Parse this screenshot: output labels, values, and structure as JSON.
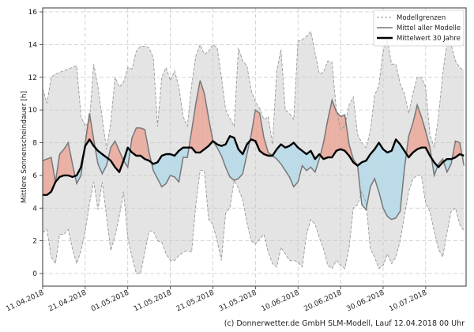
{
  "chart_data": {
    "type": "area",
    "ylabel": "Mittlere Sonnenscheindauer [h]",
    "xlabel": "",
    "ylim": [
      -0.6,
      16.2
    ],
    "yticks": [
      0,
      2,
      4,
      6,
      8,
      10,
      12,
      14,
      16
    ],
    "x_start_date": "11.04.2018",
    "x_days": 99.5,
    "xticks": [
      {
        "day": 0,
        "label": "11.04.2018"
      },
      {
        "day": 10,
        "label": "21.04.2018"
      },
      {
        "day": 20,
        "label": "01.05.2018"
      },
      {
        "day": 30,
        "label": "11.05.2018"
      },
      {
        "day": 40,
        "label": "21.05.2018"
      },
      {
        "day": 50,
        "label": "31.05.2018"
      },
      {
        "day": 60,
        "label": "10.06.2018"
      },
      {
        "day": 70,
        "label": "20.06.2018"
      },
      {
        "day": 80,
        "label": "30.06.2018"
      },
      {
        "day": 90,
        "label": "10.07.2018"
      }
    ],
    "grid": true,
    "legend_position": "top-right",
    "legend": [
      "Modellgrenzen",
      "Mittel aller Modelle",
      "Mittelwert 30 Jahre"
    ],
    "colors": {
      "band": "#e4e4e4",
      "band_edge": "#999999",
      "model_mean": "#777777",
      "climate_mean": "#000000",
      "above": "#eab0a4",
      "below": "#bcdbe8"
    },
    "series": [
      {
        "name": "Modellgrenzen max",
        "values": [
          11.3,
          10.4,
          12.0,
          12.2,
          12.3,
          12.4,
          12.5,
          12.6,
          12.7,
          9.6,
          9.0,
          9.3,
          12.8,
          11.4,
          9.5,
          7.6,
          9.2,
          12.0,
          11.4,
          11.7,
          12.6,
          12.5,
          13.6,
          13.9,
          13.9,
          13.8,
          13.2,
          9.0,
          12.0,
          12.6,
          11.8,
          12.4,
          11.4,
          9.6,
          9.0,
          11.5,
          13.3,
          14.0,
          13.4,
          13.6,
          14.0,
          13.8,
          12.0,
          10.0,
          9.5,
          9.0,
          13.8,
          13.0,
          12.7,
          11.2,
          10.5,
          10.1,
          9.4,
          9.6,
          7.9,
          12.4,
          13.7,
          10.0,
          9.8,
          9.4,
          14.2,
          14.3,
          14.5,
          14.8,
          13.5,
          12.2,
          12.3,
          13.0,
          12.9,
          10.0,
          8.8,
          9.0,
          10.3,
          10.8,
          8.5,
          8.0,
          7.7,
          8.7,
          10.9,
          11.5,
          13.6,
          14.3,
          12.8,
          12.8,
          11.6,
          11.0,
          9.8,
          11.0,
          12.0,
          12.0,
          11.4,
          8.5,
          7.7,
          9.6,
          12.2,
          14.1,
          14.0,
          13.0,
          12.6,
          12.4
        ]
      },
      {
        "name": "Modellgrenzen min",
        "values": [
          2.5,
          2.7,
          1.0,
          0.6,
          2.4,
          2.4,
          2.7,
          1.5,
          0.6,
          1.4,
          2.6,
          4.3,
          5.6,
          3.9,
          5.6,
          3.5,
          1.4,
          2.3,
          3.5,
          5.0,
          2.2,
          1.0,
          0.0,
          0.0,
          1.3,
          2.6,
          2.6,
          2.0,
          1.9,
          1.2,
          0.8,
          0.8,
          1.1,
          1.3,
          1.4,
          1.3,
          4.2,
          6.3,
          6.3,
          3.3,
          3.0,
          2.0,
          0.8,
          3.7,
          4.0,
          5.7,
          5.2,
          4.5,
          3.1,
          2.0,
          1.8,
          2.1,
          2.4,
          1.3,
          0.6,
          0.4,
          1.6,
          1.2,
          0.8,
          0.8,
          0.7,
          0.4,
          2.4,
          3.3,
          3.0,
          2.2,
          1.5,
          0.5,
          0.3,
          0.8,
          0.5,
          0.3,
          1.6,
          4.0,
          4.2,
          5.0,
          4.3,
          1.5,
          1.0,
          0.3,
          0.5,
          1.2,
          0.6,
          1.0,
          2.0,
          3.5,
          5.0,
          5.8,
          6.0,
          6.0,
          4.3,
          3.8,
          2.6,
          1.5,
          1.0,
          2.5,
          3.8,
          4.0,
          3.0,
          2.6
        ]
      },
      {
        "name": "Mittel aller Modelle",
        "values": [
          6.9,
          7.0,
          7.1,
          5.6,
          7.3,
          7.6,
          8.0,
          6.7,
          5.5,
          6.0,
          8.0,
          9.8,
          8.2,
          6.7,
          6.1,
          6.6,
          7.7,
          8.1,
          7.5,
          6.9,
          6.5,
          8.3,
          8.9,
          8.9,
          8.8,
          7.4,
          6.3,
          5.8,
          5.3,
          5.5,
          6.0,
          5.9,
          5.6,
          7.1,
          7.1,
          8.7,
          10.4,
          11.8,
          11.0,
          9.5,
          8.1,
          7.7,
          7.2,
          6.5,
          5.9,
          5.7,
          5.8,
          6.1,
          7.3,
          8.5,
          10.0,
          9.8,
          8.3,
          7.4,
          7.2,
          7.0,
          6.7,
          6.3,
          5.9,
          5.3,
          5.6,
          6.6,
          6.3,
          6.5,
          6.2,
          7.0,
          8.0,
          9.4,
          10.6,
          9.9,
          9.6,
          9.7,
          7.9,
          7.0,
          6.6,
          4.2,
          3.9,
          5.3,
          5.8,
          5.0,
          4.0,
          3.5,
          3.3,
          3.4,
          3.8,
          6.4,
          8.4,
          9.2,
          10.3,
          9.6,
          8.7,
          7.7,
          6.0,
          6.7,
          7.0,
          6.2,
          6.7,
          8.1,
          8.0,
          6.6
        ]
      },
      {
        "name": "Mittelwert 30 Jahre",
        "values": [
          4.8,
          4.8,
          5.0,
          5.6,
          5.9,
          6.0,
          6.0,
          5.9,
          6.0,
          6.5,
          7.8,
          8.2,
          7.8,
          7.5,
          7.3,
          7.1,
          6.9,
          6.5,
          6.2,
          6.9,
          7.7,
          7.4,
          7.2,
          7.2,
          7.0,
          6.9,
          6.7,
          6.8,
          7.2,
          7.3,
          7.3,
          7.2,
          7.5,
          7.7,
          7.7,
          7.7,
          7.4,
          7.4,
          7.6,
          7.8,
          8.1,
          7.9,
          7.8,
          7.9,
          8.4,
          8.3,
          7.6,
          7.3,
          7.9,
          8.2,
          8.1,
          7.5,
          7.3,
          7.2,
          7.2,
          7.6,
          7.9,
          7.7,
          7.8,
          8.0,
          7.7,
          7.5,
          7.3,
          7.5,
          7.0,
          7.3,
          7.0,
          7.1,
          7.1,
          7.5,
          7.6,
          7.5,
          7.2,
          6.8,
          6.6,
          6.8,
          6.9,
          7.3,
          7.6,
          8.0,
          7.6,
          7.4,
          7.5,
          8.2,
          7.9,
          7.5,
          7.1,
          7.4,
          7.6,
          7.7,
          7.7,
          7.2,
          6.8,
          6.5,
          6.8,
          7.0,
          7.0,
          7.1,
          7.3,
          7.2
        ]
      }
    ],
    "credit": "(c) Donnerwetter.de GmbH SLM-Modell, Lauf 12.04.2018 00 Uhr"
  }
}
